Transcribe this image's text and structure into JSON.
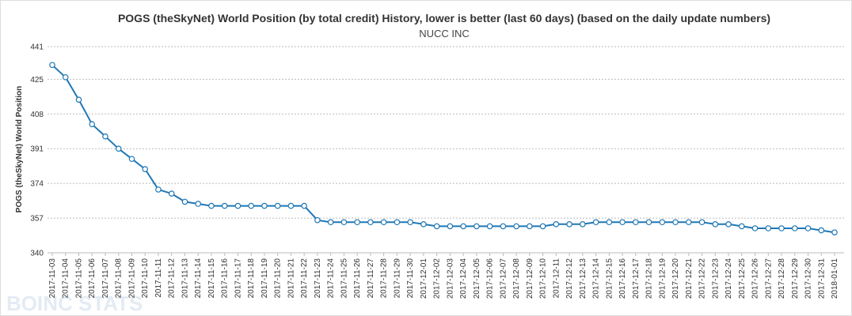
{
  "chart_data": {
    "type": "line",
    "title": "POGS (theSkyNet) World Position (by total credit) History, lower is better (last 60 days) (based on the daily update numbers)",
    "subtitle": "NUCC INC",
    "xlabel": "",
    "ylabel": "POGS (theSkyNet) World Position",
    "ylim": [
      340,
      441
    ],
    "yticks": [
      340,
      357,
      374,
      391,
      408,
      425,
      441
    ],
    "grid": true,
    "series": [
      {
        "color": "#1f77b4",
        "x": [
          "2017-11-03",
          "2017-11-04",
          "2017-11-05",
          "2017-11-06",
          "2017-11-07",
          "2017-11-08",
          "2017-11-09",
          "2017-11-10",
          "2017-11-11",
          "2017-11-12",
          "2017-11-13",
          "2017-11-14",
          "2017-11-15",
          "2017-11-16",
          "2017-11-17",
          "2017-11-18",
          "2017-11-19",
          "2017-11-20",
          "2017-11-21",
          "2017-11-22",
          "2017-11-23",
          "2017-11-24",
          "2017-11-25",
          "2017-11-26",
          "2017-11-27",
          "2017-11-28",
          "2017-11-29",
          "2017-11-30",
          "2017-12-01",
          "2017-12-02",
          "2017-12-03",
          "2017-12-04",
          "2017-12-05",
          "2017-12-06",
          "2017-12-07",
          "2017-12-08",
          "2017-12-09",
          "2017-12-10",
          "2017-12-11",
          "2017-12-12",
          "2017-12-13",
          "2017-12-14",
          "2017-12-15",
          "2017-12-16",
          "2017-12-17",
          "2017-12-18",
          "2017-12-19",
          "2017-12-20",
          "2017-12-21",
          "2017-12-22",
          "2017-12-23",
          "2017-12-24",
          "2017-12-25",
          "2017-12-26",
          "2017-12-27",
          "2017-12-28",
          "2017-12-29",
          "2017-12-30",
          "2017-12-31",
          "2018-01-01"
        ],
        "values": [
          432,
          426,
          415,
          403,
          397,
          391,
          386,
          381,
          371,
          369,
          365,
          364,
          363,
          363,
          363,
          363,
          363,
          363,
          363,
          363,
          356,
          355,
          355,
          355,
          355,
          355,
          355,
          355,
          354,
          353,
          353,
          353,
          353,
          353,
          353,
          353,
          353,
          353,
          354,
          354,
          354,
          355,
          355,
          355,
          355,
          355,
          355,
          355,
          355,
          355,
          354,
          354,
          353,
          352,
          352,
          352,
          352,
          352,
          351,
          350
        ]
      }
    ]
  },
  "watermark": "BOINC STATS"
}
